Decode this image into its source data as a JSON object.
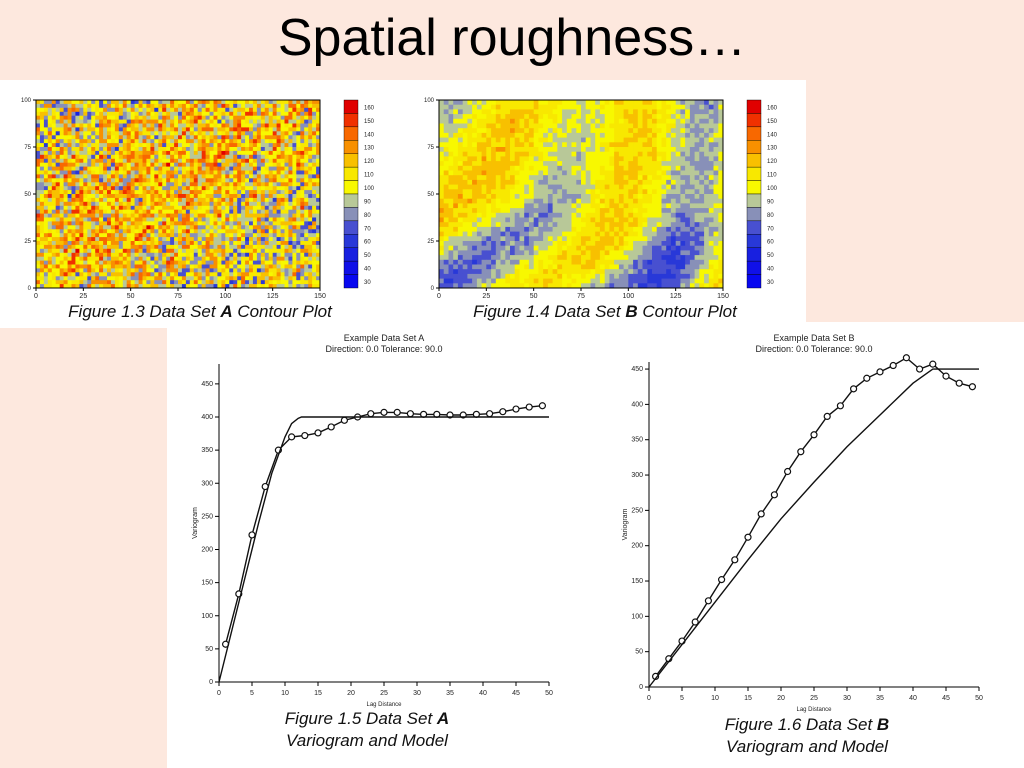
{
  "slide": {
    "title": "Spatial roughness…"
  },
  "colorbar": {
    "labels": [
      "160",
      "150",
      "140",
      "130",
      "120",
      "110",
      "100",
      "90",
      "80",
      "70",
      "60",
      "50",
      "40",
      "30"
    ],
    "colors": [
      "#e00000",
      "#f03000",
      "#f86800",
      "#f89000",
      "#f8c000",
      "#f8e800",
      "#f8f800",
      "#b8c898",
      "#8890b8",
      "#4850d0",
      "#2838d8",
      "#1820e0",
      "#1010e8",
      "#0808f0"
    ]
  },
  "figures": {
    "fig13": {
      "caption_prefix": "Figure 1.3  Data Set ",
      "caption_bold": "A",
      "caption_suffix": " Contour Plot"
    },
    "fig14": {
      "caption_prefix": "Figure 1.4  Data Set ",
      "caption_bold": "B",
      "caption_suffix": " Contour Plot"
    },
    "fig15": {
      "line1_prefix": "Figure 1.5  Data Set ",
      "line1_bold": "A",
      "line2": "Variogram and Model"
    },
    "fig16": {
      "line1_prefix": "Figure 1.6  Data Set ",
      "line1_bold": "B",
      "line2": "Variogram and Model"
    }
  },
  "chart_data": [
    {
      "type": "heatmap",
      "id": "contour-a",
      "x_ticks": [
        "0",
        "25",
        "50",
        "75",
        "100",
        "125",
        "150"
      ],
      "y_ticks": [
        "0",
        "25",
        "50",
        "75",
        "100"
      ],
      "xlim": [
        0,
        150
      ],
      "ylim": [
        0,
        100
      ],
      "dominant_range": "mixed 30-160, mostly 90-120 (yellow/olive) with scattered red and blue patches"
    },
    {
      "type": "heatmap",
      "id": "contour-b",
      "x_ticks": [
        "0",
        "25",
        "50",
        "75",
        "100",
        "125",
        "150"
      ],
      "y_ticks": [
        "0",
        "25",
        "50",
        "75",
        "100"
      ],
      "xlim": [
        0,
        150
      ],
      "ylim": [
        0,
        100
      ],
      "dominant_range": "smooth large patches: blue 30-70 top-left/top-right/bottom-left, orange 120-140 center, olive 80-90 background"
    },
    {
      "type": "line",
      "id": "variogram-a",
      "title": "Example Data Set A",
      "subtitle": "Direction: 0.0   Tolerance: 90.0",
      "xlabel": "Lag Distance",
      "ylabel": "Variogram",
      "xlim": [
        0,
        50
      ],
      "ylim": [
        0,
        480
      ],
      "x_ticks": [
        0,
        5,
        10,
        15,
        20,
        25,
        30,
        35,
        40,
        45,
        50
      ],
      "y_ticks": [
        0,
        50,
        100,
        150,
        200,
        250,
        300,
        350,
        400,
        450
      ],
      "series": [
        {
          "name": "experimental",
          "marker": "circle",
          "x": [
            1,
            3,
            5,
            7,
            9,
            11,
            13,
            15,
            17,
            19,
            21,
            23,
            25,
            27,
            29,
            31,
            33,
            35,
            37,
            39,
            41,
            43,
            45,
            47,
            49
          ],
          "y": [
            57,
            133,
            222,
            295,
            350,
            370,
            372,
            376,
            385,
            395,
            400,
            405,
            407,
            407,
            405,
            404,
            404,
            403,
            403,
            404,
            405,
            408,
            412,
            415,
            417
          ]
        },
        {
          "name": "model",
          "marker": "none",
          "x": [
            0,
            2,
            4,
            6,
            8,
            10,
            11,
            12,
            12.5,
            13,
            14,
            20,
            30,
            40,
            50
          ],
          "y": [
            0,
            80,
            160,
            240,
            315,
            370,
            390,
            398,
            400,
            400,
            400,
            400,
            400,
            400,
            400
          ]
        }
      ]
    },
    {
      "type": "line",
      "id": "variogram-b",
      "title": "Example Data Set B",
      "subtitle": "Direction: 0.0   Tolerance: 90.0",
      "xlabel": "Lag Distance",
      "ylabel": "Variogram",
      "xlim": [
        0,
        50
      ],
      "ylim": [
        0,
        460
      ],
      "x_ticks": [
        0,
        5,
        10,
        15,
        20,
        25,
        30,
        35,
        40,
        45,
        50
      ],
      "y_ticks": [
        0,
        50,
        100,
        150,
        200,
        250,
        300,
        350,
        400,
        450
      ],
      "series": [
        {
          "name": "experimental",
          "marker": "circle",
          "x": [
            1,
            3,
            5,
            7,
            9,
            11,
            13,
            15,
            17,
            19,
            21,
            23,
            25,
            27,
            29,
            31,
            33,
            35,
            37,
            39,
            41,
            43,
            45,
            47,
            49
          ],
          "y": [
            15,
            40,
            65,
            92,
            122,
            152,
            180,
            212,
            245,
            272,
            305,
            333,
            357,
            383,
            398,
            422,
            437,
            446,
            455,
            466,
            450,
            457,
            440,
            430,
            425
          ]
        },
        {
          "name": "model",
          "marker": "none",
          "x": [
            0,
            5,
            10,
            15,
            20,
            25,
            30,
            35,
            40,
            43,
            45,
            50
          ],
          "y": [
            0,
            60,
            120,
            180,
            238,
            290,
            340,
            385,
            430,
            450,
            450,
            450
          ]
        }
      ]
    }
  ]
}
